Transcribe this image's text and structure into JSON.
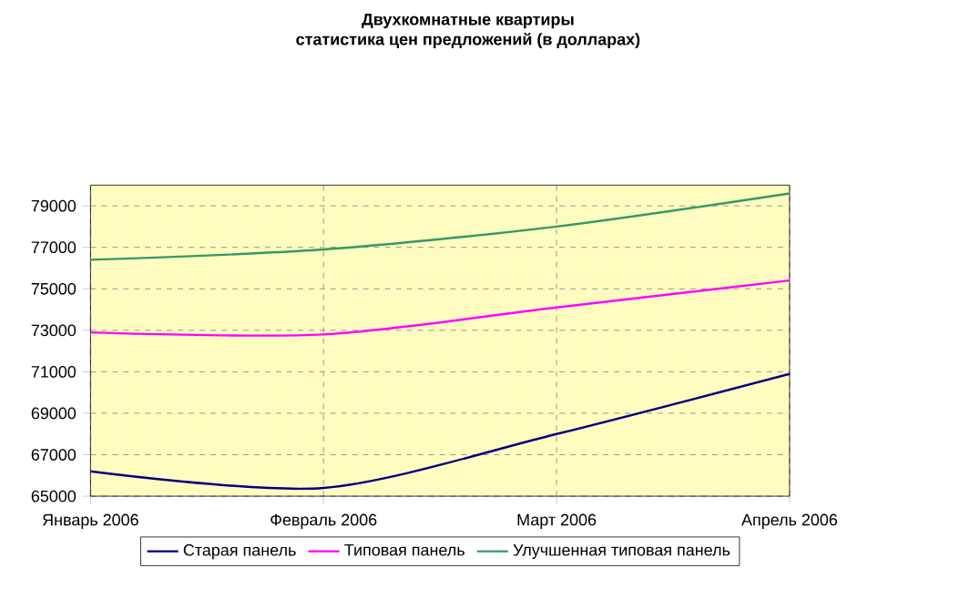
{
  "chart_data": {
    "type": "line",
    "title": "Двухкомнатные квартиры",
    "subtitle": "статистика цен предложений (в долларах)",
    "categories": [
      "Январь 2006",
      "Февраль 2006",
      "Март 2006",
      "Апрель 2006"
    ],
    "series": [
      {
        "name": "Старая панель",
        "color": "#000080",
        "values": [
          66200,
          65400,
          68000,
          70900
        ]
      },
      {
        "name": "Типовая панель",
        "color": "#ff00ff",
        "values": [
          72900,
          72800,
          74100,
          75400
        ]
      },
      {
        "name": "Улучшенная типовая панель",
        "color": "#339966",
        "values": [
          76400,
          76900,
          78000,
          79600
        ]
      }
    ],
    "ylim": [
      65000,
      80000
    ],
    "yticks": [
      65000,
      67000,
      69000,
      71000,
      73000,
      75000,
      77000,
      79000
    ],
    "grid": true,
    "legend": "bottom",
    "marker": "none",
    "line_style": "solid"
  }
}
